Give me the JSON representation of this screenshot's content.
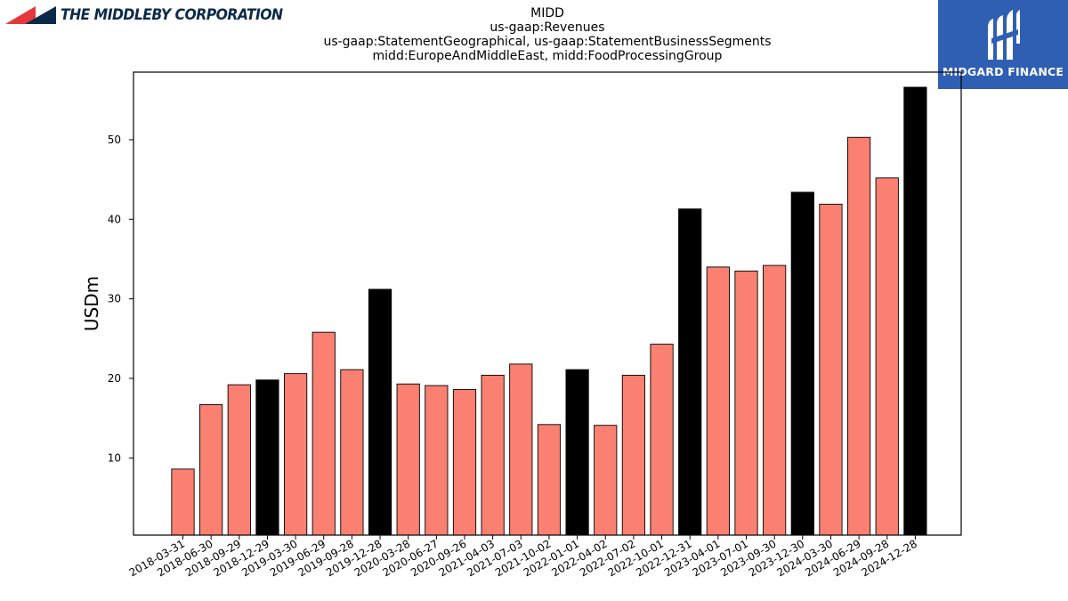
{
  "header": {
    "left_logo_text": "THE MIDDLEBY CORPORATION",
    "right_logo_text": "MIDGARD FINANCE",
    "left_logo_icon": "middleby-triangles-icon",
    "right_logo_icon": "midgard-m-icon"
  },
  "colors": {
    "bar_default": "#fa8072",
    "bar_highlight": "#000000",
    "bar_edge": "#000000",
    "right_logo_bg": "#2f5fb3",
    "left_logo_red": "#e5383b",
    "left_logo_navy": "#0b2a4a"
  },
  "chart_data": {
    "type": "bar",
    "title_lines": [
      "MIDD",
      "us-gaap:Revenues",
      "us-gaap:StatementGeographical, us-gaap:StatementBusinessSegments",
      "midd:EuropeAndMiddleEast, midd:FoodProcessingGroup"
    ],
    "xlabel": "",
    "ylabel": "USDm",
    "ylim": [
      0.3,
      58.5
    ],
    "yticks": [
      10,
      20,
      30,
      40,
      50
    ],
    "grid": false,
    "categories": [
      "2018-03-31",
      "2018-06-30",
      "2018-09-29",
      "2018-12-29",
      "2019-03-30",
      "2019-06-29",
      "2019-09-28",
      "2019-12-28",
      "2020-03-28",
      "2020-06-27",
      "2020-09-26",
      "2021-04-03",
      "2021-07-03",
      "2021-10-02",
      "2022-01-01",
      "2022-04-02",
      "2022-07-02",
      "2022-10-01",
      "2022-12-31",
      "2023-04-01",
      "2023-07-01",
      "2023-09-30",
      "2023-12-30",
      "2024-03-30",
      "2024-06-29",
      "2024-09-28",
      "2024-12-28"
    ],
    "values": [
      8.6,
      16.7,
      19.2,
      19.8,
      20.6,
      25.8,
      21.1,
      31.2,
      19.3,
      19.1,
      18.6,
      20.4,
      21.8,
      14.2,
      21.1,
      14.1,
      20.4,
      24.3,
      41.3,
      34.0,
      33.5,
      34.2,
      43.4,
      41.9,
      50.3,
      45.2,
      56.6
    ],
    "highlight": [
      false,
      false,
      false,
      true,
      false,
      false,
      false,
      true,
      false,
      false,
      false,
      false,
      false,
      false,
      true,
      false,
      false,
      false,
      true,
      false,
      false,
      false,
      true,
      false,
      false,
      false,
      true
    ]
  }
}
